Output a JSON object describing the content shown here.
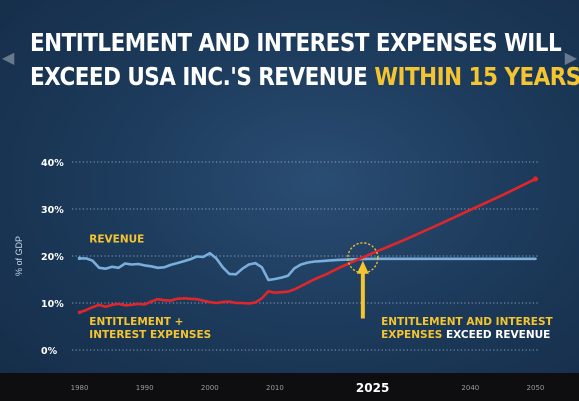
{
  "title": {
    "line1": "ENTITLEMENT AND INTEREST EXPENSES WILL",
    "line2_prefix": "EXCEED USA INC.'S REVENUE ",
    "line2_highlight": "WITHIN 15 YEARS"
  },
  "colors": {
    "background": "#1d3b5c",
    "title": "#ffffff",
    "highlight": "#f4c531",
    "revenue_line": "#7aaedb",
    "expenses_line": "#e0262b",
    "annotation": "#f4c531",
    "gridline": "#c8d6e6",
    "bottom_band": "#0e0e10"
  },
  "chart_data": {
    "type": "line",
    "title": "",
    "xlabel": "",
    "ylabel": "% of GDP",
    "xlim": [
      1977,
      2053
    ],
    "ylim": [
      0,
      40
    ],
    "grid": true,
    "x_ticks": [
      {
        "value": 1980,
        "label": "1980"
      },
      {
        "value": 1990,
        "label": "1990"
      },
      {
        "value": 2000,
        "label": "2000"
      },
      {
        "value": 2010,
        "label": "2010"
      },
      {
        "value": 2025,
        "label": "2025",
        "emphasis": true
      },
      {
        "value": 2040,
        "label": "2040"
      },
      {
        "value": 2050,
        "label": "2050"
      }
    ],
    "y_ticks": [
      {
        "value": 0,
        "label": "0%"
      },
      {
        "value": 10,
        "label": "10%"
      },
      {
        "value": 20,
        "label": "20%"
      },
      {
        "value": 30,
        "label": "30%"
      },
      {
        "value": 40,
        "label": "40%"
      }
    ],
    "series": [
      {
        "name": "REVENUE",
        "color": "#7aaedb",
        "points": [
          [
            1980,
            19.5
          ],
          [
            1981,
            19.5
          ],
          [
            1982,
            19.0
          ],
          [
            1983,
            17.5
          ],
          [
            1984,
            17.3
          ],
          [
            1985,
            17.7
          ],
          [
            1986,
            17.5
          ],
          [
            1987,
            18.4
          ],
          [
            1988,
            18.2
          ],
          [
            1989,
            18.3
          ],
          [
            1990,
            18.0
          ],
          [
            1991,
            17.8
          ],
          [
            1992,
            17.5
          ],
          [
            1993,
            17.6
          ],
          [
            1994,
            18.1
          ],
          [
            1995,
            18.5
          ],
          [
            1996,
            18.9
          ],
          [
            1997,
            19.3
          ],
          [
            1998,
            19.9
          ],
          [
            1999,
            19.8
          ],
          [
            2000,
            20.6
          ],
          [
            2001,
            19.5
          ],
          [
            2002,
            17.6
          ],
          [
            2003,
            16.2
          ],
          [
            2004,
            16.1
          ],
          [
            2005,
            17.3
          ],
          [
            2006,
            18.2
          ],
          [
            2007,
            18.5
          ],
          [
            2008,
            17.6
          ],
          [
            2009,
            14.9
          ],
          [
            2010,
            15.1
          ],
          [
            2011,
            15.4
          ],
          [
            2012,
            15.8
          ],
          [
            2013,
            17.4
          ],
          [
            2014,
            18.2
          ],
          [
            2015,
            18.6
          ],
          [
            2016,
            18.8
          ],
          [
            2017,
            18.9
          ],
          [
            2018,
            19.0
          ],
          [
            2019,
            19.1
          ],
          [
            2020,
            19.2
          ],
          [
            2022,
            19.3
          ],
          [
            2025,
            19.4
          ],
          [
            2030,
            19.4
          ],
          [
            2035,
            19.4
          ],
          [
            2040,
            19.4
          ],
          [
            2045,
            19.4
          ],
          [
            2050,
            19.4
          ]
        ]
      },
      {
        "name": "ENTITLEMENT + INTEREST EXPENSES",
        "color": "#e0262b",
        "points": [
          [
            1980,
            8.0
          ],
          [
            1981,
            8.5
          ],
          [
            1982,
            9.1
          ],
          [
            1983,
            9.6
          ],
          [
            1984,
            9.2
          ],
          [
            1985,
            9.6
          ],
          [
            1986,
            9.8
          ],
          [
            1987,
            9.5
          ],
          [
            1988,
            9.6
          ],
          [
            1989,
            9.8
          ],
          [
            1990,
            9.7
          ],
          [
            1991,
            10.3
          ],
          [
            1992,
            10.8
          ],
          [
            1993,
            10.6
          ],
          [
            1994,
            10.5
          ],
          [
            1995,
            10.9
          ],
          [
            1996,
            11.0
          ],
          [
            1997,
            10.9
          ],
          [
            1998,
            10.8
          ],
          [
            1999,
            10.5
          ],
          [
            2000,
            10.2
          ],
          [
            2001,
            10.0
          ],
          [
            2002,
            10.2
          ],
          [
            2003,
            10.3
          ],
          [
            2004,
            10.0
          ],
          [
            2005,
            10.0
          ],
          [
            2006,
            9.9
          ],
          [
            2007,
            10.1
          ],
          [
            2008,
            11.0
          ],
          [
            2009,
            12.5
          ],
          [
            2010,
            12.2
          ],
          [
            2011,
            12.3
          ],
          [
            2012,
            12.4
          ],
          [
            2013,
            12.9
          ],
          [
            2014,
            13.6
          ],
          [
            2015,
            14.3
          ],
          [
            2016,
            15.0
          ],
          [
            2017,
            15.6
          ],
          [
            2018,
            16.2
          ],
          [
            2019,
            16.9
          ],
          [
            2020,
            17.6
          ],
          [
            2021,
            18.2
          ],
          [
            2022,
            18.8
          ],
          [
            2023,
            19.4
          ],
          [
            2024,
            20.0
          ],
          [
            2025,
            20.6
          ],
          [
            2030,
            23.5
          ],
          [
            2035,
            26.6
          ],
          [
            2040,
            29.8
          ],
          [
            2045,
            33.0
          ],
          [
            2050,
            36.4
          ]
        ]
      }
    ],
    "annotations": [
      {
        "id": "revenue-label",
        "lines": [
          "REVENUE"
        ],
        "color": "#f4c531",
        "x": 1981.5,
        "y": 22.9
      },
      {
        "id": "expenses-label",
        "lines": [
          "ENTITLEMENT +",
          "INTEREST EXPENSES"
        ],
        "color": "#f4c531",
        "x": 1981.5,
        "y": 5.3
      },
      {
        "id": "crossover-label",
        "lines": [
          "ENTITLEMENT AND INTEREST",
          "EXPENSES EXCEED REVENUE"
        ],
        "color": "#f4c531",
        "white_words_on_line2": "EXCEED REVENUE",
        "x": 2026.3,
        "y": 5.3
      }
    ],
    "crossover": {
      "x": 2023.5,
      "y": 19.6,
      "marker": "dashed circle",
      "arrow_to": {
        "x": 2023.5,
        "y": 19.0
      },
      "arrow_from": {
        "x": 2023.5,
        "y": 6.7
      }
    }
  }
}
